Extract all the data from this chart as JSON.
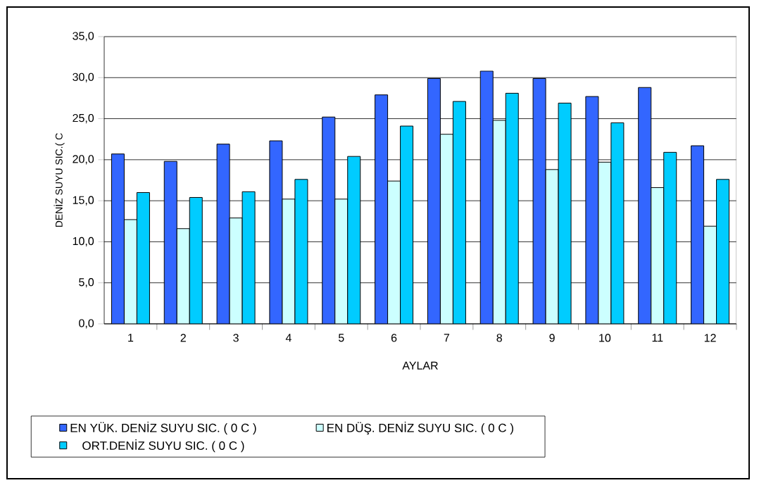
{
  "chart_data": {
    "type": "bar",
    "xlabel": "AYLAR",
    "ylabel": "DENİZ SUYU SIC.( C",
    "categories": [
      "1",
      "2",
      "3",
      "4",
      "5",
      "6",
      "7",
      "8",
      "9",
      "10",
      "11",
      "12"
    ],
    "series": [
      {
        "name": "EN YÜK. DENİZ SUYU SIC.  ( 0 C )",
        "color": "#3366ff",
        "values": [
          20.7,
          19.8,
          21.9,
          22.3,
          25.2,
          27.9,
          29.9,
          30.8,
          29.9,
          27.7,
          28.8,
          21.7
        ]
      },
      {
        "name": "EN DÜŞ. DENİZ SUYU SIC.  ( 0 C )",
        "color": "#ccffff",
        "values": [
          12.7,
          11.6,
          12.9,
          15.2,
          15.2,
          17.4,
          23.1,
          24.8,
          18.8,
          19.7,
          16.6,
          11.9
        ]
      },
      {
        "name": "ORT.DENİZ SUYU SIC. ( 0 C )",
        "color": "#00ccff",
        "values": [
          16.0,
          15.4,
          16.1,
          17.6,
          20.4,
          24.1,
          27.1,
          28.1,
          26.9,
          24.5,
          20.9,
          17.6
        ]
      }
    ],
    "ylim": [
      0,
      35
    ],
    "yticks": [
      {
        "value": 0,
        "label": "0,0"
      },
      {
        "value": 5,
        "label": "5,0"
      },
      {
        "value": 10,
        "label": "10,0"
      },
      {
        "value": 15,
        "label": "15,0"
      },
      {
        "value": 20,
        "label": "20,0"
      },
      {
        "value": 25,
        "label": "25,0"
      },
      {
        "value": 30,
        "label": "30,0"
      },
      {
        "value": 35,
        "label": "35,0"
      }
    ],
    "grid": "y",
    "legend": "bottom"
  }
}
